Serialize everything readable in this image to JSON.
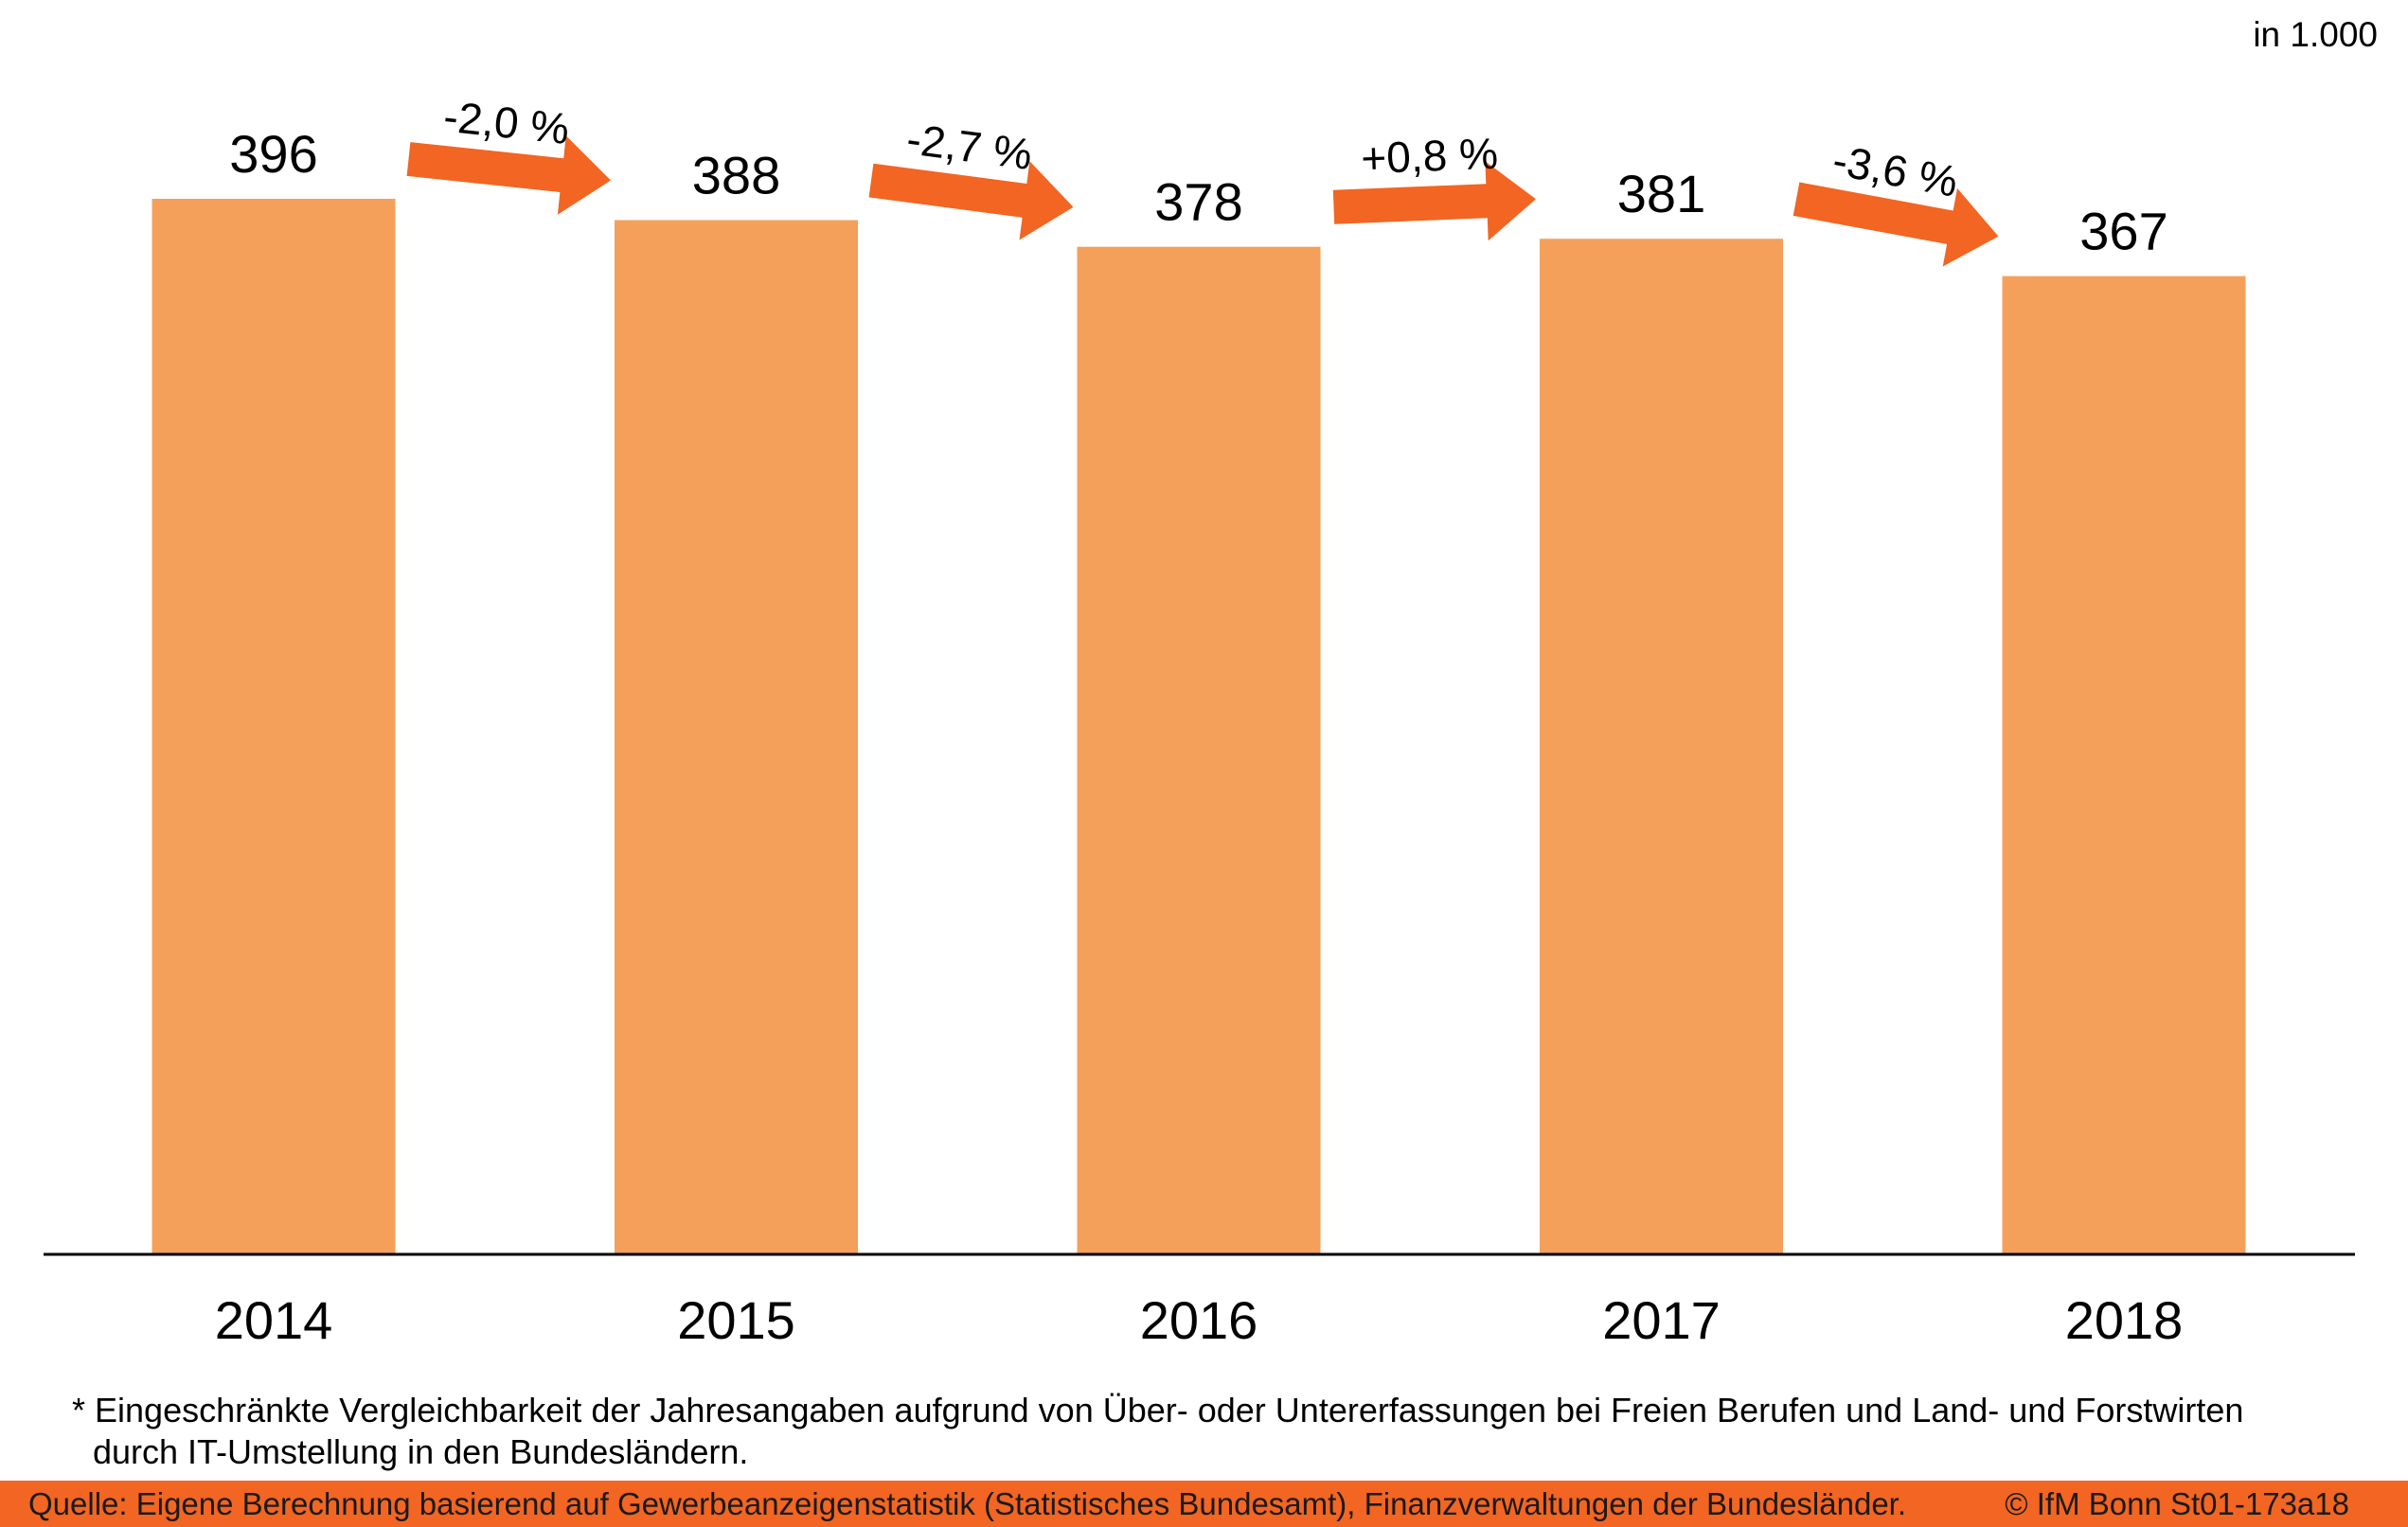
{
  "unit_label": "in 1.000",
  "chart_data": {
    "type": "bar",
    "title": "",
    "xlabel": "",
    "ylabel": "",
    "unit": "in 1.000",
    "categories": [
      "2014",
      "2015",
      "2016",
      "2017",
      "2018"
    ],
    "values": [
      396,
      388,
      378,
      381,
      367
    ],
    "value_labels": [
      "396",
      "388",
      "378",
      "381",
      "367"
    ],
    "changes": [
      {
        "from": "2014",
        "to": "2015",
        "label": "-2,0 %",
        "direction": "down"
      },
      {
        "from": "2015",
        "to": "2016",
        "label": "-2,7 %",
        "direction": "down"
      },
      {
        "from": "2016",
        "to": "2017",
        "label": "+0,8 %",
        "direction": "up"
      },
      {
        "from": "2017",
        "to": "2018",
        "label": "-3,6 %",
        "direction": "down"
      }
    ],
    "ylim": [
      0,
      396
    ],
    "grid": false,
    "bar_color": "#f4a05a",
    "arrow_color": "#f26522"
  },
  "footnote": {
    "line1": "* Eingeschränkte Vergleichbarkeit der Jahresangaben aufgrund von Über- oder Untererfassungen bei Freien Berufen und Land- und Forstwirten",
    "line2": "durch IT-Umstellung in den Bundesländern."
  },
  "source": {
    "text": "Quelle: Eigene Berechnung basierend auf Gewerbeanzeigenstatistik (Statistisches Bundesamt), Finanzverwaltungen der Bundesländer.",
    "copyright": "© IfM Bonn St01-173a18",
    "bar_color": "#f26522"
  }
}
